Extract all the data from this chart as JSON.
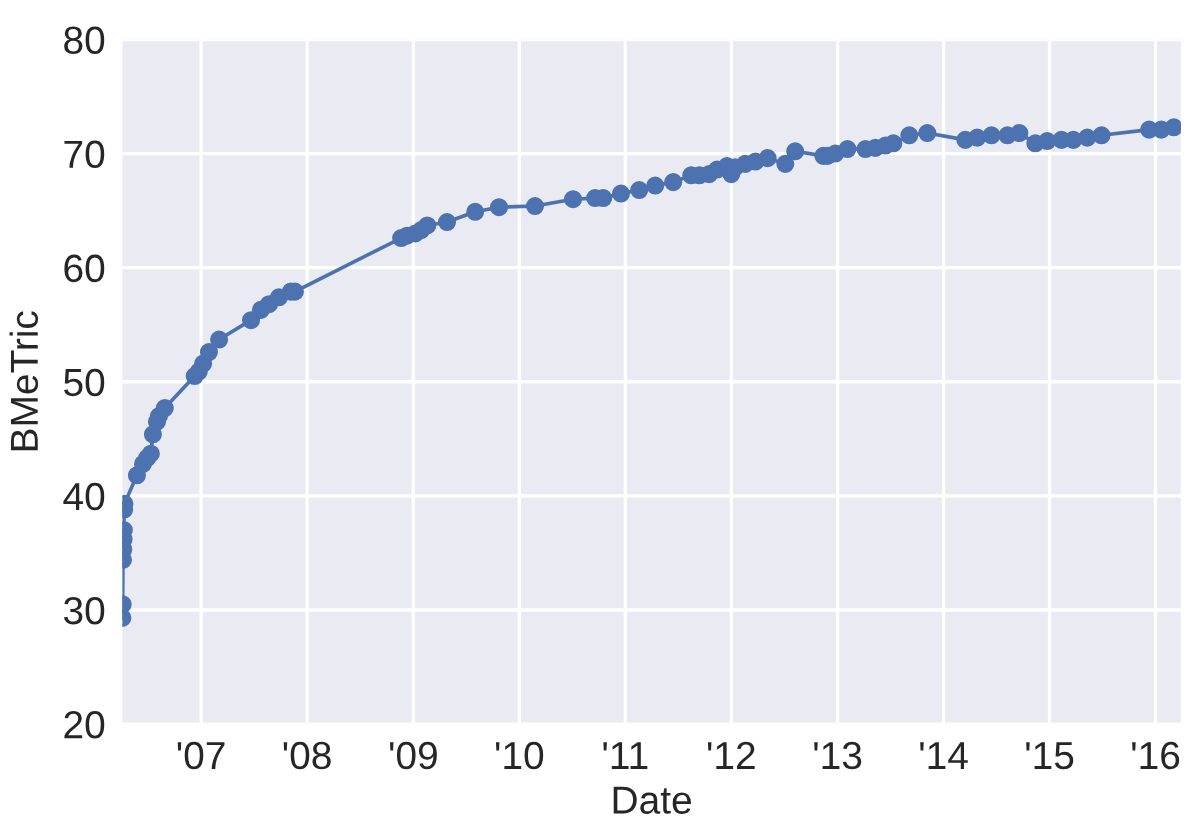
{
  "chart_data": {
    "type": "line",
    "xlabel": "Date",
    "ylabel": "BMeTric",
    "xlim": [
      "2006-04-05",
      "2016-03-28"
    ],
    "ylim": [
      20,
      80
    ],
    "xticks": [
      {
        "value": "2007-01-01",
        "label": "'07"
      },
      {
        "value": "2008-01-01",
        "label": "'08"
      },
      {
        "value": "2009-01-01",
        "label": "'09"
      },
      {
        "value": "2010-01-01",
        "label": "'10"
      },
      {
        "value": "2011-01-01",
        "label": "'11"
      },
      {
        "value": "2012-01-01",
        "label": "'12"
      },
      {
        "value": "2013-01-01",
        "label": "'13"
      },
      {
        "value": "2014-01-01",
        "label": "'14"
      },
      {
        "value": "2015-01-01",
        "label": "'15"
      },
      {
        "value": "2016-01-01",
        "label": "'16"
      }
    ],
    "yticks": [
      20,
      30,
      40,
      50,
      60,
      70,
      80
    ],
    "grid": true,
    "marker": "circle",
    "line_style": "solid",
    "series": [
      {
        "color": "#4c72b0",
        "x": [
          "2006-04-05",
          "2006-04-06",
          "2006-04-07",
          "2006-04-08",
          "2006-04-09",
          "2006-04-10",
          "2006-04-11",
          "2006-04-12",
          "2006-05-25",
          "2006-06-15",
          "2006-06-29",
          "2006-07-12",
          "2006-07-19",
          "2006-08-02",
          "2006-08-09",
          "2006-08-29",
          "2006-12-10",
          "2006-12-24",
          "2007-01-08",
          "2007-01-28",
          "2007-03-04",
          "2007-06-22",
          "2007-07-26",
          "2007-08-23",
          "2007-09-26",
          "2007-11-06",
          "2007-11-20",
          "2008-11-20",
          "2008-12-10",
          "2009-01-08",
          "2009-01-28",
          "2009-02-18",
          "2009-04-27",
          "2009-08-02",
          "2009-10-23",
          "2010-02-24",
          "2010-07-05",
          "2010-09-19",
          "2010-10-17",
          "2010-12-17",
          "2011-02-18",
          "2011-04-14",
          "2011-06-15",
          "2011-08-16",
          "2011-09-13",
          "2011-10-17",
          "2011-11-13",
          "2011-12-17",
          "2012-01-01",
          "2012-01-14",
          "2012-02-18",
          "2012-03-24",
          "2012-05-05",
          "2012-07-05",
          "2012-08-08",
          "2012-11-13",
          "2012-11-27",
          "2012-12-24",
          "2013-02-04",
          "2013-04-07",
          "2013-05-11",
          "2013-06-15",
          "2013-07-12",
          "2013-09-05",
          "2013-11-06",
          "2014-03-17",
          "2014-04-27",
          "2014-06-15",
          "2014-08-09",
          "2014-09-19",
          "2014-11-13",
          "2014-12-24",
          "2015-02-11",
          "2015-03-24",
          "2015-05-11",
          "2015-06-29",
          "2015-12-10",
          "2016-01-21",
          "2016-03-04"
        ],
        "values": [
          29.3,
          30.5,
          34.4,
          35.3,
          36.2,
          37.0,
          38.8,
          39.3,
          41.8,
          42.8,
          43.3,
          43.7,
          45.4,
          46.5,
          47.0,
          47.7,
          50.5,
          50.9,
          51.6,
          52.6,
          53.7,
          55.4,
          56.3,
          56.8,
          57.4,
          57.9,
          57.9,
          62.6,
          62.8,
          63.0,
          63.3,
          63.7,
          64.0,
          64.9,
          65.3,
          65.4,
          66.0,
          66.1,
          66.1,
          66.5,
          66.8,
          67.2,
          67.5,
          68.1,
          68.1,
          68.2,
          68.6,
          68.9,
          68.2,
          68.8,
          69.1,
          69.3,
          69.6,
          69.1,
          70.2,
          69.8,
          69.8,
          70.0,
          70.4,
          70.4,
          70.5,
          70.7,
          70.9,
          71.6,
          71.8,
          71.2,
          71.4,
          71.6,
          71.6,
          71.8,
          70.9,
          71.1,
          71.2,
          71.2,
          71.4,
          71.6,
          72.1,
          72.1,
          72.3
        ]
      }
    ]
  }
}
